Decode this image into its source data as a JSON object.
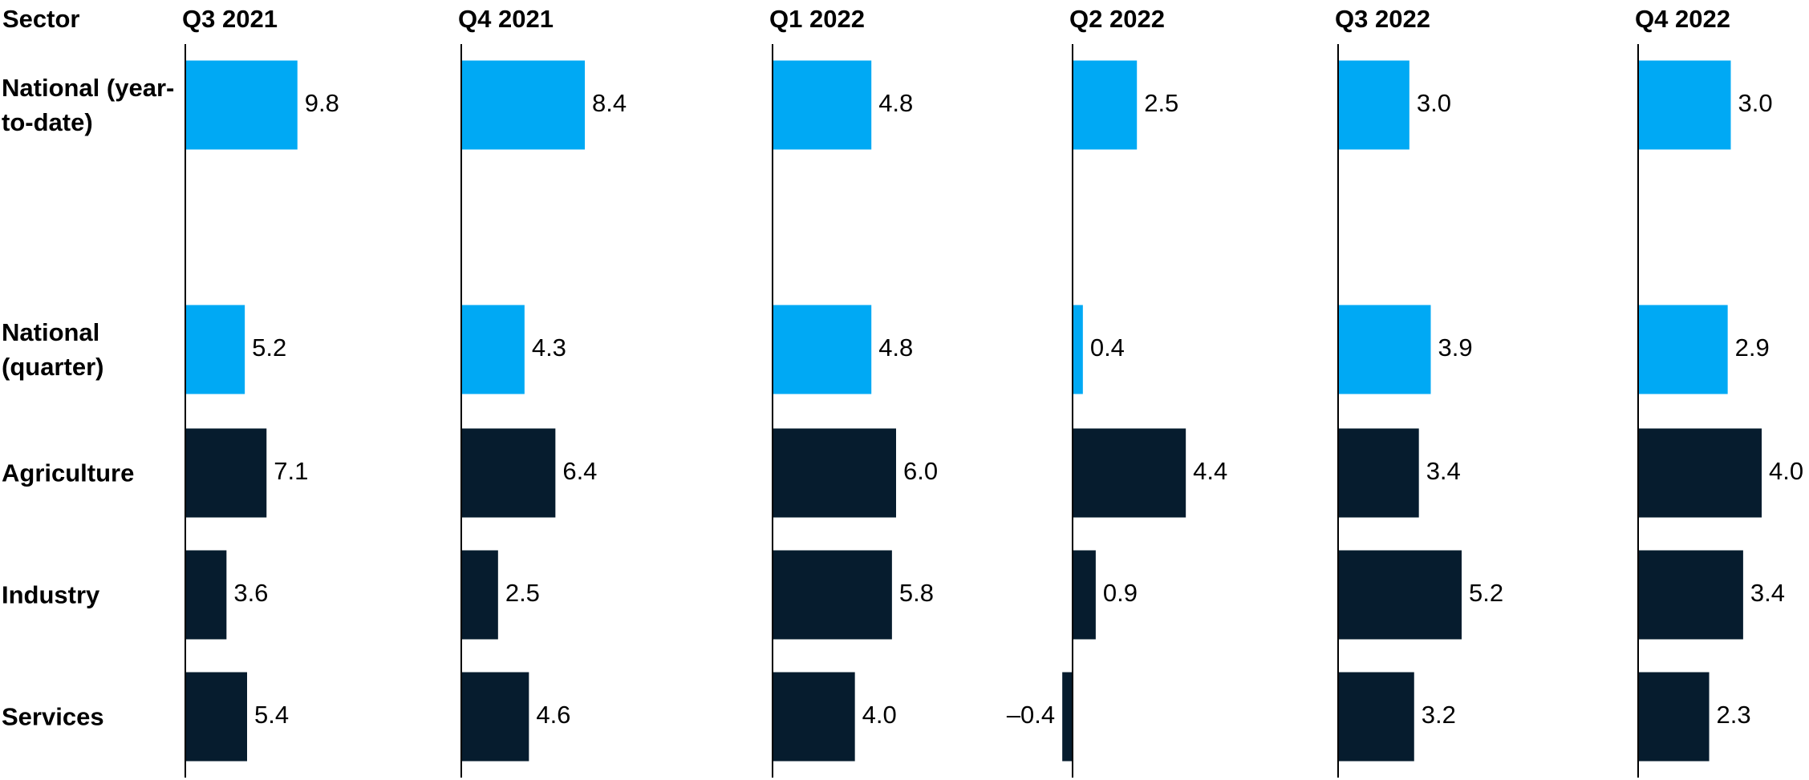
{
  "chart_data": {
    "type": "bar",
    "orientation": "horizontal",
    "category_header": "Sector",
    "categories": [
      "National (year-to-date)",
      "National (quarter)",
      "Agriculture",
      "Industry",
      "Services"
    ],
    "colors": [
      "#00a9f4",
      "#00a9f4",
      "#061c2e",
      "#061c2e",
      "#061c2e"
    ],
    "series": [
      {
        "name": "Q3 2021",
        "xlim": [
          0,
          10.8
        ],
        "values": [
          9.8,
          5.2,
          7.1,
          3.6,
          5.4
        ],
        "value_labels": [
          "9.8",
          "5.2",
          "7.1",
          "3.6",
          "5.4"
        ]
      },
      {
        "name": "Q4 2021",
        "xlim": [
          0,
          8.4
        ],
        "values": [
          8.4,
          4.3,
          6.4,
          2.5,
          4.6
        ],
        "value_labels": [
          "8.4",
          "4.3",
          "6.4",
          "2.5",
          "4.6"
        ]
      },
      {
        "name": "Q1 2022",
        "xlim": [
          0,
          6.0
        ],
        "values": [
          4.8,
          4.8,
          6.0,
          5.8,
          4.0
        ],
        "value_labels": [
          "4.8",
          "4.8",
          "6.0",
          "5.8",
          "4.0"
        ]
      },
      {
        "name": "Q2 2022",
        "xlim": [
          0,
          4.8
        ],
        "values": [
          2.5,
          0.4,
          4.4,
          0.9,
          -0.4
        ],
        "value_labels": [
          "2.5",
          "0.4",
          "4.4",
          "0.9",
          "–0.4"
        ]
      },
      {
        "name": "Q3 2022",
        "xlim": [
          0,
          5.2
        ],
        "values": [
          3.0,
          3.9,
          3.4,
          5.2,
          3.2
        ],
        "value_labels": [
          "3.0",
          "3.9",
          "3.4",
          "5.2",
          "3.2"
        ]
      },
      {
        "name": "Q4 2022",
        "xlim": [
          0,
          4.0
        ],
        "values": [
          3.0,
          2.9,
          4.0,
          3.4,
          2.3
        ],
        "value_labels": [
          "3.0",
          "2.9",
          "4.0",
          "3.4",
          "2.3"
        ]
      }
    ]
  }
}
